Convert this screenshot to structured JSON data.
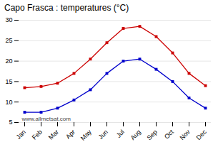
{
  "chart_data": {
    "type": "line",
    "title": "Capo Frasca : temperatures (°C)",
    "categories": [
      "Jan",
      "Feb",
      "Mar",
      "Apr",
      "May",
      "Jun",
      "Jul",
      "Aug",
      "Sep",
      "Oct",
      "Nov",
      "Dec"
    ],
    "series": [
      {
        "color": "#cc0000",
        "marker": "square",
        "values": [
          13.5,
          13.8,
          14.6,
          17.0,
          20.5,
          24.5,
          28.0,
          28.5,
          26.0,
          22.0,
          17.0,
          14.0
        ]
      },
      {
        "color": "#0000cc",
        "marker": "square",
        "values": [
          7.5,
          7.5,
          8.5,
          10.5,
          13.0,
          17.0,
          20.0,
          20.5,
          18.0,
          15.0,
          11.0,
          8.5
        ]
      }
    ],
    "ylim": [
      5,
      30
    ],
    "yticks": [
      5,
      10,
      15,
      20,
      25,
      30
    ],
    "grid": true,
    "annotations": [
      "www.allmetsat.com"
    ]
  }
}
